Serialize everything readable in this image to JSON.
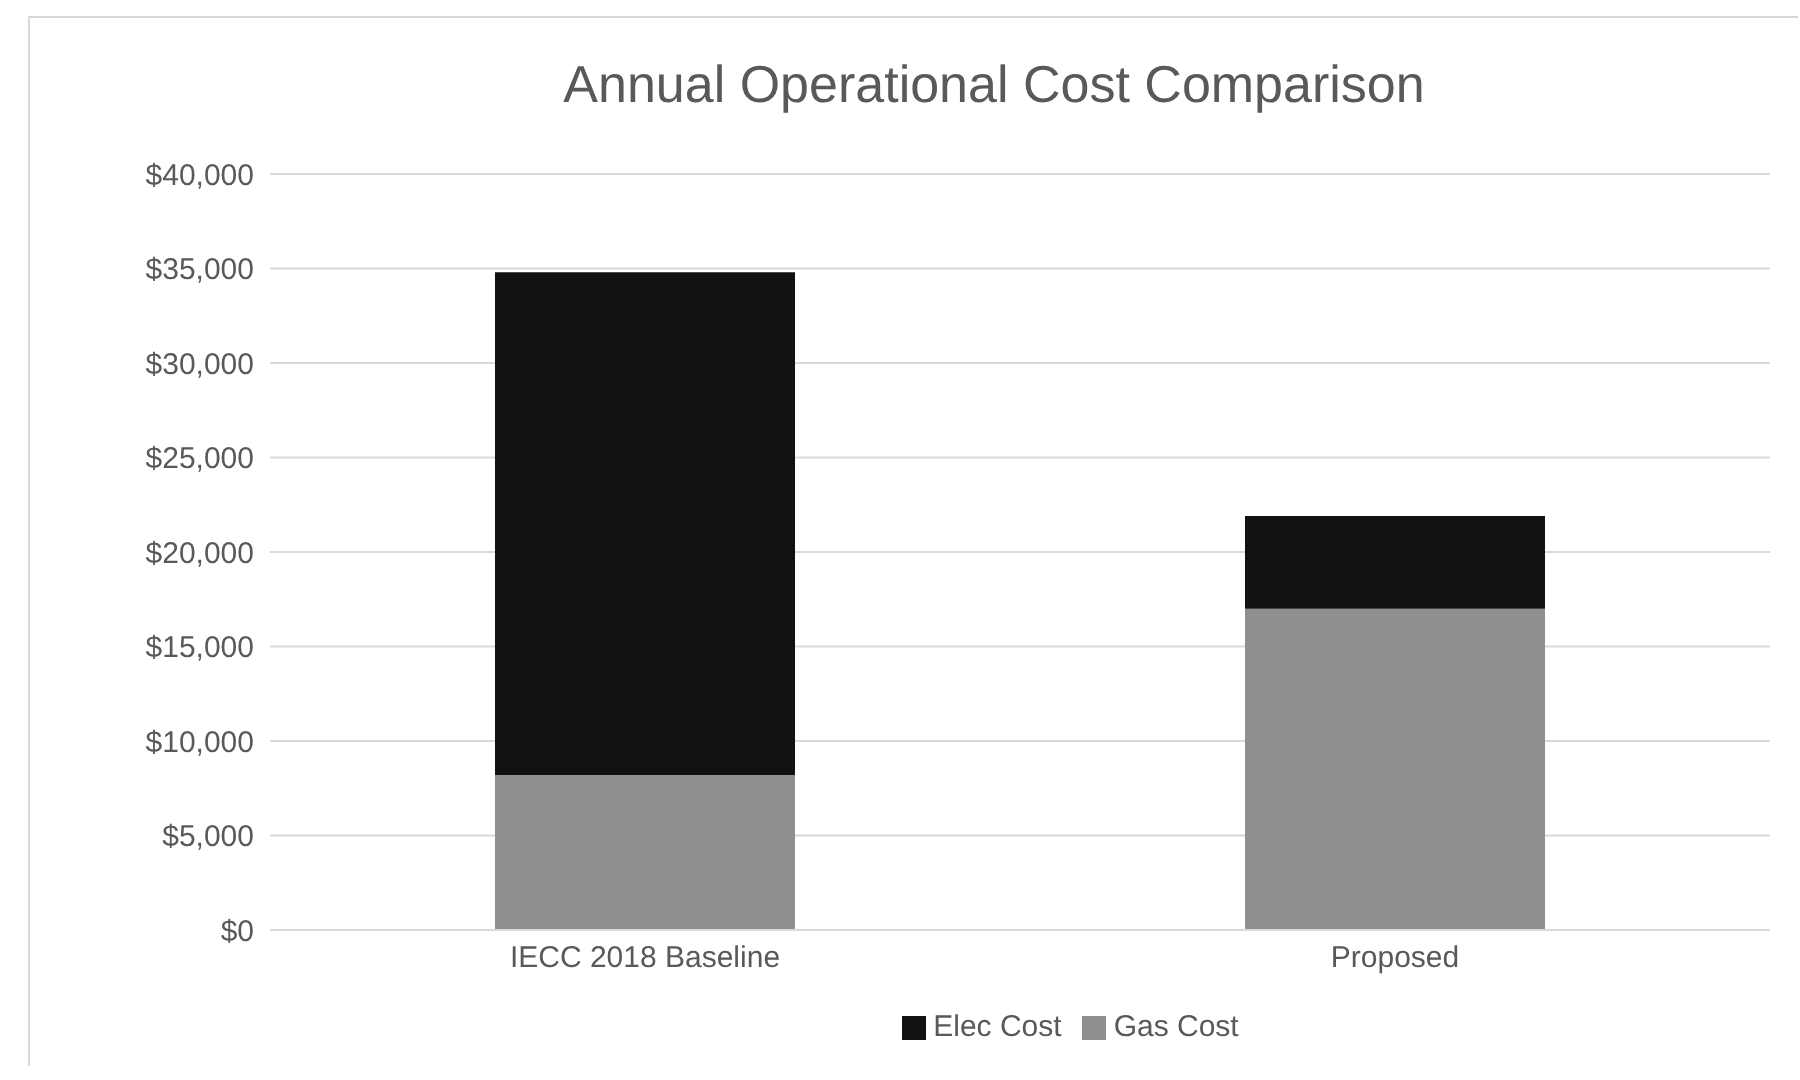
{
  "chart_data": {
    "type": "bar",
    "title": "Annual Operational Cost Comparison",
    "categories": [
      "IECC 2018 Baseline",
      "Proposed"
    ],
    "stacked": true,
    "series": [
      {
        "name": "Gas Cost",
        "color": "#8f8f8f",
        "values": [
          8200,
          17000
        ]
      },
      {
        "name": "Elec Cost",
        "color": "#111111",
        "values": [
          26600,
          4900
        ]
      }
    ],
    "ylim": [
      0,
      40000
    ],
    "yticks": [
      {
        "value": 0,
        "label": "$0"
      },
      {
        "value": 5000,
        "label": "$5,000"
      },
      {
        "value": 10000,
        "label": "$10,000"
      },
      {
        "value": 15000,
        "label": "$15,000"
      },
      {
        "value": 20000,
        "label": "$20,000"
      },
      {
        "value": 25000,
        "label": "$25,000"
      },
      {
        "value": 30000,
        "label": "$30,000"
      },
      {
        "value": 35000,
        "label": "$35,000"
      },
      {
        "value": 40000,
        "label": "$40,000"
      }
    ],
    "grid": "y",
    "legend": "bottom"
  }
}
